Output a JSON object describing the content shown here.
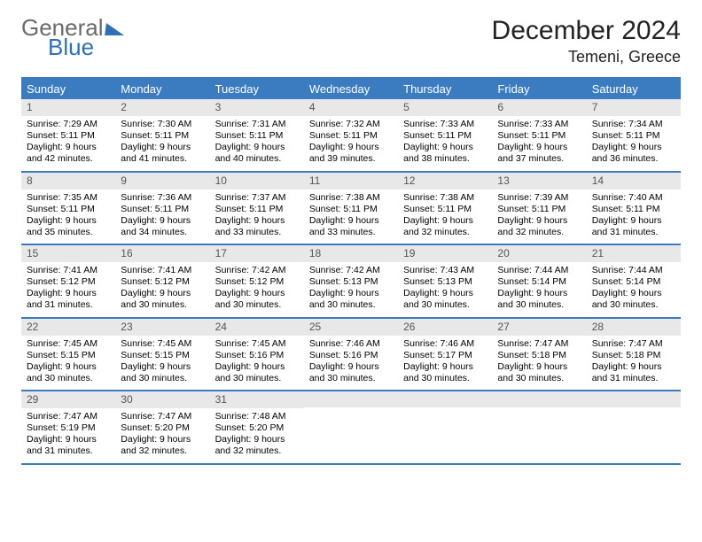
{
  "logo": {
    "text1": "General",
    "text2": "Blue"
  },
  "title": "December 2024",
  "location": "Temeni, Greece",
  "colors": {
    "header_bg": "#3b7bbf",
    "header_text": "#ffffff",
    "daynum_bg": "#e8e8e8",
    "daynum_text": "#555555",
    "rule": "#3b7bbf",
    "logo_gray": "#6a6a6a",
    "logo_blue": "#2f6fb3"
  },
  "dows": [
    "Sunday",
    "Monday",
    "Tuesday",
    "Wednesday",
    "Thursday",
    "Friday",
    "Saturday"
  ],
  "weeks": [
    [
      {
        "n": "1",
        "sr": "7:29 AM",
        "ss": "5:11 PM",
        "dl": "9 hours and 42 minutes."
      },
      {
        "n": "2",
        "sr": "7:30 AM",
        "ss": "5:11 PM",
        "dl": "9 hours and 41 minutes."
      },
      {
        "n": "3",
        "sr": "7:31 AM",
        "ss": "5:11 PM",
        "dl": "9 hours and 40 minutes."
      },
      {
        "n": "4",
        "sr": "7:32 AM",
        "ss": "5:11 PM",
        "dl": "9 hours and 39 minutes."
      },
      {
        "n": "5",
        "sr": "7:33 AM",
        "ss": "5:11 PM",
        "dl": "9 hours and 38 minutes."
      },
      {
        "n": "6",
        "sr": "7:33 AM",
        "ss": "5:11 PM",
        "dl": "9 hours and 37 minutes."
      },
      {
        "n": "7",
        "sr": "7:34 AM",
        "ss": "5:11 PM",
        "dl": "9 hours and 36 minutes."
      }
    ],
    [
      {
        "n": "8",
        "sr": "7:35 AM",
        "ss": "5:11 PM",
        "dl": "9 hours and 35 minutes."
      },
      {
        "n": "9",
        "sr": "7:36 AM",
        "ss": "5:11 PM",
        "dl": "9 hours and 34 minutes."
      },
      {
        "n": "10",
        "sr": "7:37 AM",
        "ss": "5:11 PM",
        "dl": "9 hours and 33 minutes."
      },
      {
        "n": "11",
        "sr": "7:38 AM",
        "ss": "5:11 PM",
        "dl": "9 hours and 33 minutes."
      },
      {
        "n": "12",
        "sr": "7:38 AM",
        "ss": "5:11 PM",
        "dl": "9 hours and 32 minutes."
      },
      {
        "n": "13",
        "sr": "7:39 AM",
        "ss": "5:11 PM",
        "dl": "9 hours and 32 minutes."
      },
      {
        "n": "14",
        "sr": "7:40 AM",
        "ss": "5:11 PM",
        "dl": "9 hours and 31 minutes."
      }
    ],
    [
      {
        "n": "15",
        "sr": "7:41 AM",
        "ss": "5:12 PM",
        "dl": "9 hours and 31 minutes."
      },
      {
        "n": "16",
        "sr": "7:41 AM",
        "ss": "5:12 PM",
        "dl": "9 hours and 30 minutes."
      },
      {
        "n": "17",
        "sr": "7:42 AM",
        "ss": "5:12 PM",
        "dl": "9 hours and 30 minutes."
      },
      {
        "n": "18",
        "sr": "7:42 AM",
        "ss": "5:13 PM",
        "dl": "9 hours and 30 minutes."
      },
      {
        "n": "19",
        "sr": "7:43 AM",
        "ss": "5:13 PM",
        "dl": "9 hours and 30 minutes."
      },
      {
        "n": "20",
        "sr": "7:44 AM",
        "ss": "5:14 PM",
        "dl": "9 hours and 30 minutes."
      },
      {
        "n": "21",
        "sr": "7:44 AM",
        "ss": "5:14 PM",
        "dl": "9 hours and 30 minutes."
      }
    ],
    [
      {
        "n": "22",
        "sr": "7:45 AM",
        "ss": "5:15 PM",
        "dl": "9 hours and 30 minutes."
      },
      {
        "n": "23",
        "sr": "7:45 AM",
        "ss": "5:15 PM",
        "dl": "9 hours and 30 minutes."
      },
      {
        "n": "24",
        "sr": "7:45 AM",
        "ss": "5:16 PM",
        "dl": "9 hours and 30 minutes."
      },
      {
        "n": "25",
        "sr": "7:46 AM",
        "ss": "5:16 PM",
        "dl": "9 hours and 30 minutes."
      },
      {
        "n": "26",
        "sr": "7:46 AM",
        "ss": "5:17 PM",
        "dl": "9 hours and 30 minutes."
      },
      {
        "n": "27",
        "sr": "7:47 AM",
        "ss": "5:18 PM",
        "dl": "9 hours and 30 minutes."
      },
      {
        "n": "28",
        "sr": "7:47 AM",
        "ss": "5:18 PM",
        "dl": "9 hours and 31 minutes."
      }
    ],
    [
      {
        "n": "29",
        "sr": "7:47 AM",
        "ss": "5:19 PM",
        "dl": "9 hours and 31 minutes."
      },
      {
        "n": "30",
        "sr": "7:47 AM",
        "ss": "5:20 PM",
        "dl": "9 hours and 32 minutes."
      },
      {
        "n": "31",
        "sr": "7:48 AM",
        "ss": "5:20 PM",
        "dl": "9 hours and 32 minutes."
      },
      null,
      null,
      null,
      null
    ]
  ],
  "labels": {
    "sunrise": "Sunrise: ",
    "sunset": "Sunset: ",
    "daylight": "Daylight: "
  }
}
